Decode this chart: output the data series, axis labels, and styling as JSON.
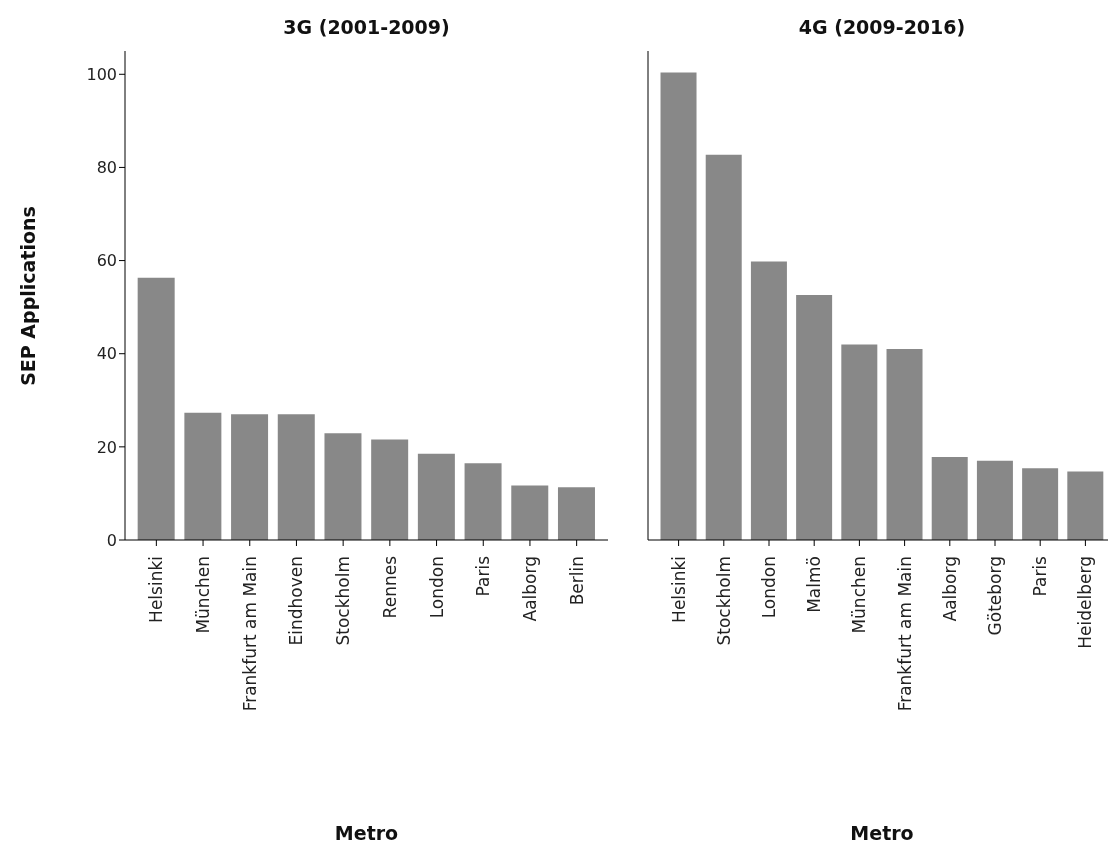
{
  "chart_data": [
    {
      "type": "bar",
      "title": "3G (2001-2009)",
      "xlabel": "Metro",
      "ylabel": "SEP Applications",
      "categories": [
        "Helsinki",
        "München",
        "Frankfurt am Main",
        "Eindhoven",
        "Stockholm",
        "Rennes",
        "London",
        "Paris",
        "Aalborg",
        "Berlin"
      ],
      "values": [
        56.3,
        27.3,
        27.0,
        27.0,
        22.9,
        21.6,
        18.5,
        16.5,
        11.7,
        11.3
      ],
      "color": "#888888",
      "ylim": [
        0,
        105
      ],
      "yticks": [
        0,
        20,
        40,
        60,
        80,
        100
      ],
      "grid": false,
      "legend": false
    },
    {
      "type": "bar",
      "title": "4G (2009-2016)",
      "xlabel": "Metro",
      "categories": [
        "Helsinki",
        "Stockholm",
        "London",
        "Malmö",
        "München",
        "Frankfurt am Main",
        "Aalborg",
        "Göteborg",
        "Paris",
        "Heidelberg"
      ],
      "values": [
        100.4,
        82.7,
        59.8,
        52.6,
        42.0,
        41.0,
        17.8,
        17.0,
        15.4,
        14.7
      ],
      "color": "#888888",
      "ylim": [
        0,
        105
      ],
      "yticks": [
        0,
        20,
        40,
        60,
        80,
        100
      ],
      "grid": false,
      "legend": false,
      "tick_labels": "x"
    }
  ]
}
